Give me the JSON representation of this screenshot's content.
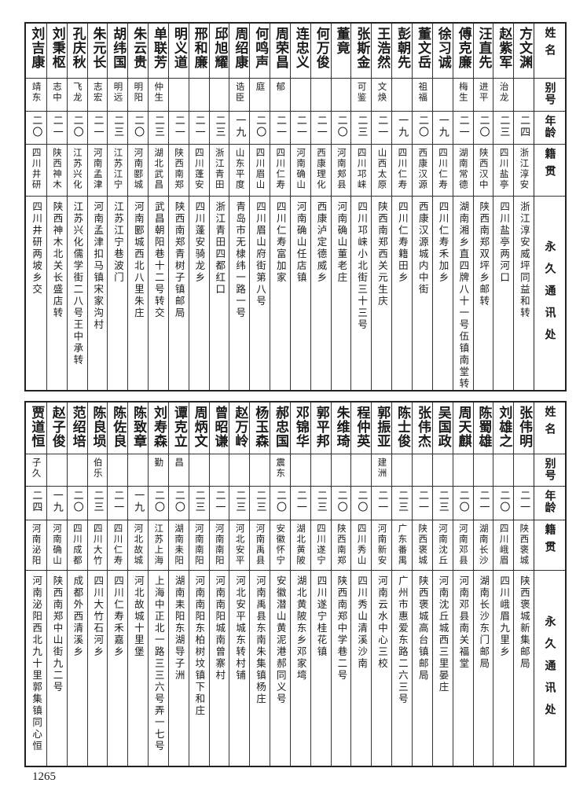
{
  "headers": [
    "姓名",
    "别号",
    "年龄",
    "籍贯",
    "永久通讯处"
  ],
  "tables": [
    {
      "rows": [
        [
          "方文渊",
          "",
          "二四",
          "浙江淳安",
          "浙江淳安威坪同益和转"
        ],
        [
          "赵紫军",
          "治龙",
          "二三",
          "四川盐亭",
          "四川盐亭两河口"
        ],
        [
          "汪直先",
          "进平",
          "二〇",
          "陕西汉中",
          "陕西南郑双坪乡邮转"
        ],
        [
          "傅克廉",
          "梅生",
          "二一",
          "湖南常德",
          "湖南湘乡直四牌八十一号伍镇南堂转"
        ],
        [
          "徐习诚",
          "",
          "一九",
          "四川仁寿",
          "四川仁寿禾加乡"
        ],
        [
          "董文岳",
          "祖福",
          "二〇",
          "西康汉源",
          "西康汉源城内中街"
        ],
        [
          "彭朝先",
          "",
          "一九",
          "四川仁寿",
          "四川仁寿籍田乡"
        ],
        [
          "王浩然",
          "文焕",
          "二一",
          "山西太原",
          "陕西南郑西关元生庆"
        ],
        [
          "张斯金",
          "可鉴",
          "二三",
          "四川邛崃",
          "四川邛崃小北街三十三号"
        ],
        [
          "董竟",
          "",
          "二〇",
          "河南郏县",
          "河南确山董老庄"
        ],
        [
          "何万俊",
          "",
          "二一",
          "西康理化",
          "西康泸定德威乡"
        ],
        [
          "连忠义",
          "",
          "二一",
          "河南确山",
          "河南确山任店镇"
        ],
        [
          "周荣昌",
          "郁",
          "二一",
          "四川仁寿",
          "四川仁寿富加家"
        ],
        [
          "何鸣声",
          "庭",
          "二〇",
          "四川眉山",
          "四川眉山府街第八号"
        ],
        [
          "周绍康",
          "诰臣",
          "一九",
          "山东平度",
          "青岛市无棣纬一路一号"
        ],
        [
          "邱旭耀",
          "",
          "二三",
          "浙江青田",
          "浙江青田四都红口"
        ],
        [
          "邢和廉",
          "",
          "二一",
          "四川蓬安",
          "四川蓬安骑龙乡"
        ],
        [
          "明义道",
          "",
          "二一",
          "陕西南郑",
          "陕西南郑青树子镇邮局"
        ],
        [
          "单联芳",
          "仲生",
          "二三",
          "湖北武昌",
          "武昌朝阳巷十二号转交"
        ],
        [
          "朱云贵",
          "明阳",
          "二〇",
          "河南郾城",
          "河南郾城西北八里朱庄"
        ],
        [
          "胡纬国",
          "明远",
          "二三",
          "江苏江宁",
          "江苏江宁巷波门"
        ],
        [
          "朱元长",
          "志宏",
          "二一",
          "河南孟津",
          "河南孟津扣马镇宋家沟村"
        ],
        [
          "孔庆秋",
          "飞龙",
          "二〇",
          "江苏兴化",
          "江苏兴化儒学街二八号王中承转"
        ],
        [
          "刘秉枢",
          "志中",
          "二一",
          "陕西神木",
          "陕西神木北关长盛店转"
        ],
        [
          "刘吉康",
          "靖东",
          "二〇",
          "四川井研",
          "四川井研两坡乡交"
        ]
      ]
    },
    {
      "rows": [
        [
          "张伟明",
          "",
          "二一",
          "陕西褒城",
          "陕西褒城新集邮局"
        ],
        [
          "刘雄之",
          "",
          "二〇",
          "四川峨眉",
          "四川峨眉九里乡"
        ],
        [
          "陈蜀雄",
          "",
          "二一",
          "湖南长沙",
          "湖南长沙东门邮局"
        ],
        [
          "周天麒",
          "",
          "二〇",
          "河南邓县",
          "河南邓县南关福堂"
        ],
        [
          "吴国政",
          "",
          "二三",
          "河南沈丘",
          "河南沈丘城西三里晏庄"
        ],
        [
          "张伟杰",
          "",
          "二一",
          "陕西褒城",
          "陕西褒城高台镇邮局"
        ],
        [
          "陈士俊",
          "",
          "二三",
          "广东番禺",
          "广州市惠爱东路二六三号"
        ],
        [
          "郭振亚",
          "建洲",
          "二一",
          "河南新安",
          "河南云水中心三校"
        ],
        [
          "程仲英",
          "",
          "二〇",
          "四川秀山",
          "四川秀山清溪沙南"
        ],
        [
          "朱维琦",
          "",
          "二〇",
          "陕西南郑",
          "陕西南郑中学巷二号"
        ],
        [
          "郭平邦",
          "",
          "二三",
          "四川遂宁",
          "四川遂宁桂花镇"
        ],
        [
          "邓锦华",
          "",
          "二一",
          "湖北黄陂",
          "湖北黄陂东乡邓家塆"
        ],
        [
          "郝忠国",
          "震东",
          "二〇",
          "安徽怀宁",
          "安徽潜山黄泥港郝同义号"
        ],
        [
          "杨玉森",
          "",
          "二三",
          "河南禹县",
          "河南禹县东南朱集镇杨庄"
        ],
        [
          "赵万岭",
          "",
          "二三",
          "河北安平",
          "河北安平城东转村铺"
        ],
        [
          "曾昭谦",
          "",
          "二一",
          "河南南阳",
          "河南南阳城南曾寨村"
        ],
        [
          "周炳文",
          "",
          "二三",
          "河南南阳",
          "河南南阳东柏树坟镇下和庄"
        ],
        [
          "谭克立",
          "昌",
          "二〇",
          "湖南耒阳",
          "湖南耒阳东湖导子洲"
        ],
        [
          "刘寿森",
          "勤",
          "二〇",
          "江苏上海",
          "上海中正北一路三三六号弄一七号"
        ],
        [
          "陈致章",
          "",
          "一九",
          "河北故城",
          "河北故城十里堡"
        ],
        [
          "陈佐良",
          "",
          "二一",
          "四川仁寿",
          "四川仁寿禾嘉乡"
        ],
        [
          "陈良埙",
          "伯乐",
          "二三",
          "四川大竹",
          "四川大竹石河乡"
        ],
        [
          "范绍培",
          "",
          "二〇",
          "四川成都",
          "成都外西清溪乡"
        ],
        [
          "赵子俊",
          "",
          "一九",
          "河南确山",
          "陕西南郑中山街九二号"
        ],
        [
          "贾道恒",
          "子久",
          "二四",
          "河南泌阳",
          "河南泌阳西北九十里郭集镇同心恒"
        ]
      ]
    }
  ],
  "page_number": "1265"
}
